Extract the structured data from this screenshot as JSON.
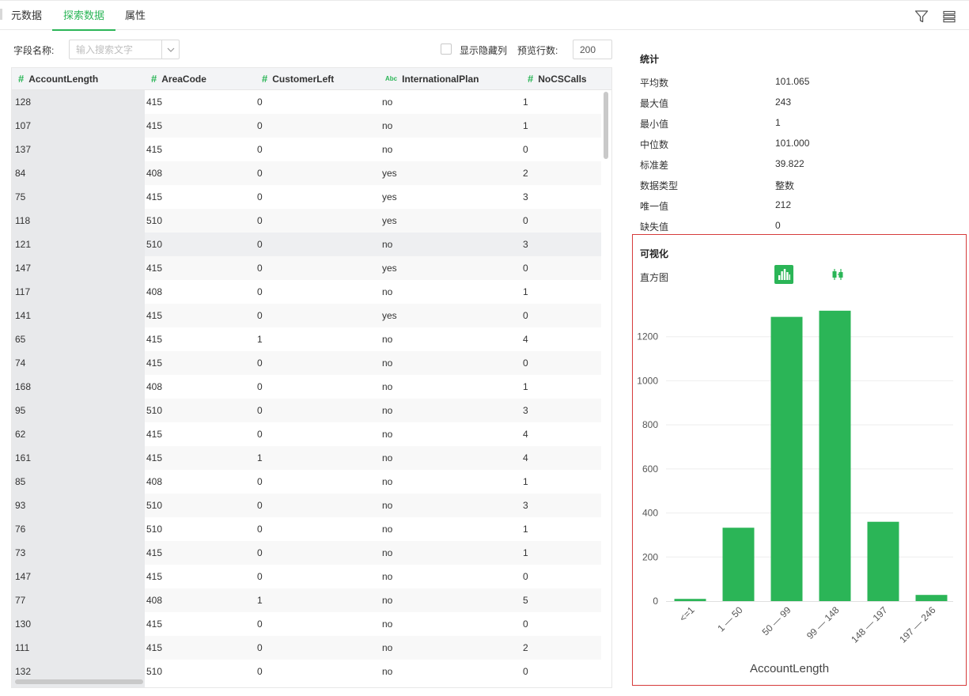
{
  "tabs": [
    {
      "label": "元数据",
      "active": false
    },
    {
      "label": "探索数据",
      "active": true
    },
    {
      "label": "属性",
      "active": false
    }
  ],
  "toolbar": {
    "field_label": "字段名称:",
    "search_placeholder": "输入搜索文字",
    "show_hidden_label": "显示隐藏列",
    "show_hidden_checked": false,
    "preview_label": "预览行数:",
    "preview_rows": "200"
  },
  "icons": {
    "filter": "filter-icon",
    "list": "list-icon",
    "histogram": "histogram-icon",
    "boxplot": "boxplot-icon",
    "dropdown": "chevron-down-icon"
  },
  "table": {
    "columns": [
      {
        "name": "AccountLength",
        "type": "#"
      },
      {
        "name": "AreaCode",
        "type": "#"
      },
      {
        "name": "CustomerLeft",
        "type": "#"
      },
      {
        "name": "InternationalPlan",
        "type": "Abc"
      },
      {
        "name": "NoCSCalls",
        "type": "#"
      }
    ],
    "rows": [
      [
        "128",
        "415",
        "0",
        "no",
        "1"
      ],
      [
        "107",
        "415",
        "0",
        "no",
        "1"
      ],
      [
        "137",
        "415",
        "0",
        "no",
        "0"
      ],
      [
        "84",
        "408",
        "0",
        "yes",
        "2"
      ],
      [
        "75",
        "415",
        "0",
        "yes",
        "3"
      ],
      [
        "118",
        "510",
        "0",
        "yes",
        "0"
      ],
      [
        "121",
        "510",
        "0",
        "no",
        "3"
      ],
      [
        "147",
        "415",
        "0",
        "yes",
        "0"
      ],
      [
        "117",
        "408",
        "0",
        "no",
        "1"
      ],
      [
        "141",
        "415",
        "0",
        "yes",
        "0"
      ],
      [
        "65",
        "415",
        "1",
        "no",
        "4"
      ],
      [
        "74",
        "415",
        "0",
        "no",
        "0"
      ],
      [
        "168",
        "408",
        "0",
        "no",
        "1"
      ],
      [
        "95",
        "510",
        "0",
        "no",
        "3"
      ],
      [
        "62",
        "415",
        "0",
        "no",
        "4"
      ],
      [
        "161",
        "415",
        "1",
        "no",
        "4"
      ],
      [
        "85",
        "408",
        "0",
        "no",
        "1"
      ],
      [
        "93",
        "510",
        "0",
        "no",
        "3"
      ],
      [
        "76",
        "510",
        "0",
        "no",
        "1"
      ],
      [
        "73",
        "415",
        "0",
        "no",
        "1"
      ],
      [
        "147",
        "415",
        "0",
        "no",
        "0"
      ],
      [
        "77",
        "408",
        "1",
        "no",
        "5"
      ],
      [
        "130",
        "415",
        "0",
        "no",
        "0"
      ],
      [
        "111",
        "415",
        "0",
        "no",
        "2"
      ],
      [
        "132",
        "510",
        "0",
        "no",
        "0"
      ]
    ]
  },
  "stats": {
    "title": "统计",
    "items": [
      {
        "label": "平均数",
        "value": "101.065"
      },
      {
        "label": "最大值",
        "value": "243"
      },
      {
        "label": "最小值",
        "value": "1"
      },
      {
        "label": "中位数",
        "value": "101.000"
      },
      {
        "label": "标准差",
        "value": "39.822"
      },
      {
        "label": "数据类型",
        "value": "整数"
      },
      {
        "label": "唯一值",
        "value": "212"
      },
      {
        "label": "缺失值",
        "value": "0"
      }
    ]
  },
  "visualization": {
    "title": "可视化",
    "histogram_label": "直方图"
  },
  "colors": {
    "accent": "#2bb557",
    "highlight_border": "#d63b3b"
  },
  "chart_data": {
    "type": "bar",
    "categories": [
      "<=1",
      "1 — 50",
      "50 — 99",
      "99 — 148",
      "148 — 197",
      "197 — 246"
    ],
    "values": [
      10,
      333,
      1290,
      1318,
      360,
      28
    ],
    "xlabel": "AccountLength",
    "ylabel": "",
    "ylim": [
      0,
      1400
    ],
    "yticks": [
      0,
      200,
      400,
      600,
      800,
      1000,
      1200
    ],
    "grid": true,
    "color": "#2bb557"
  }
}
